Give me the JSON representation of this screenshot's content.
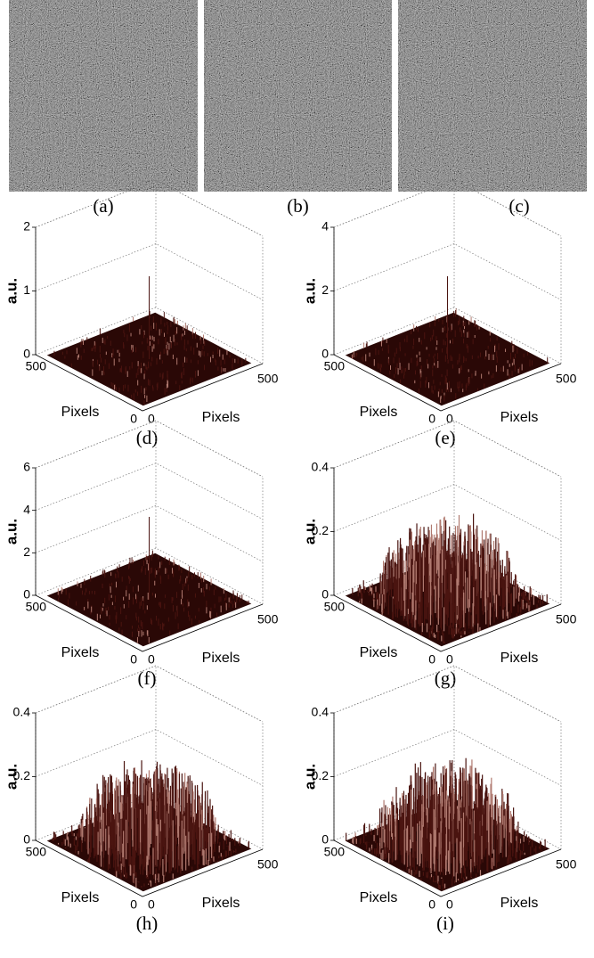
{
  "images": [
    {
      "label": "(a)"
    },
    {
      "label": "(b)"
    },
    {
      "label": "(c)"
    }
  ],
  "plots": [
    {
      "label": "(d)",
      "z_axis_label": "a.u.",
      "z_ticks": [
        0,
        1,
        2
      ],
      "x_axis_label": "Pixels",
      "y_axis_label": "Pixels",
      "x_ticks": [
        0,
        500
      ],
      "y_ticks": [
        0,
        500
      ]
    },
    {
      "label": "(e)",
      "z_axis_label": "a.u.",
      "z_ticks": [
        0,
        2,
        4
      ],
      "x_axis_label": "Pixels",
      "y_axis_label": "Pixels",
      "x_ticks": [
        0,
        500
      ],
      "y_ticks": [
        0,
        500
      ]
    },
    {
      "label": "(f)",
      "z_axis_label": "a.u.",
      "z_ticks": [
        0,
        2,
        4,
        6
      ],
      "x_axis_label": "Pixels",
      "y_axis_label": "Pixels",
      "x_ticks": [
        0,
        500
      ],
      "y_ticks": [
        0,
        500
      ]
    },
    {
      "label": "(g)",
      "z_axis_label": "a.u.",
      "z_ticks": [
        0,
        0.2,
        0.4
      ],
      "x_axis_label": "Pixels",
      "y_axis_label": "Pixels",
      "x_ticks": [
        0,
        500
      ],
      "y_ticks": [
        0,
        500
      ]
    },
    {
      "label": "(h)",
      "z_axis_label": "a.u.",
      "z_ticks": [
        0,
        0.2,
        0.4
      ],
      "x_axis_label": "Pixels",
      "y_axis_label": "Pixels",
      "x_ticks": [
        0,
        500
      ],
      "y_ticks": [
        0,
        500
      ]
    },
    {
      "label": "(i)",
      "z_axis_label": "a.u.",
      "z_ticks": [
        0,
        0.2,
        0.4
      ],
      "x_axis_label": "Pixels",
      "y_axis_label": "Pixels",
      "x_ticks": [
        0,
        500
      ],
      "y_ticks": [
        0,
        500
      ]
    }
  ]
}
